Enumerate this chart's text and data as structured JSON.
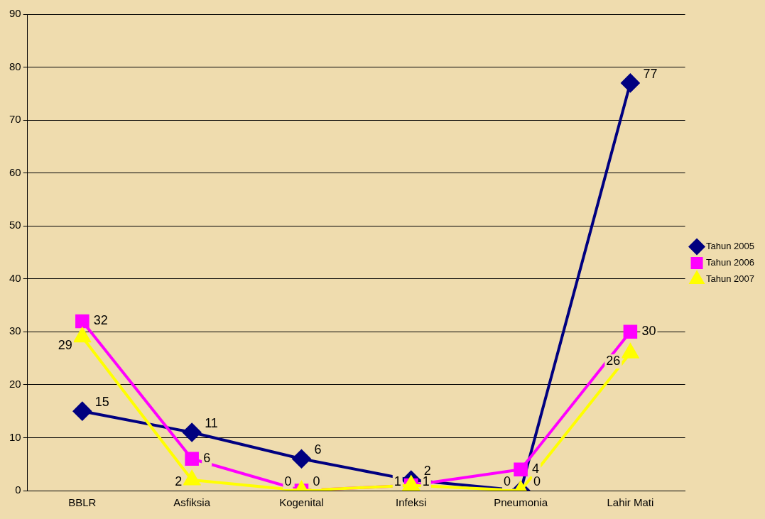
{
  "chart_data": {
    "type": "line",
    "categories": [
      "BBLR",
      "Asfiksia",
      "Kogenital",
      "Infeksi",
      "Pneumonia",
      "Lahir Mati"
    ],
    "series": [
      {
        "name": "Tahun 2005",
        "color": "#000080",
        "marker": "diamond",
        "values": [
          15,
          11,
          6,
          2,
          0,
          77
        ]
      },
      {
        "name": "Tahun 2006",
        "color": "#ff00ff",
        "marker": "square",
        "values": [
          32,
          6,
          0,
          1,
          4,
          30
        ]
      },
      {
        "name": "Tahun 2007",
        "color": "#ffff00",
        "marker": "triangle",
        "values": [
          29,
          2,
          0,
          1,
          0,
          26
        ]
      }
    ],
    "ylim": [
      0,
      90
    ],
    "yticks": [
      0,
      10,
      20,
      30,
      40,
      50,
      60,
      70,
      80,
      90
    ],
    "grid": "y",
    "legend": "right",
    "data_labels": true
  }
}
